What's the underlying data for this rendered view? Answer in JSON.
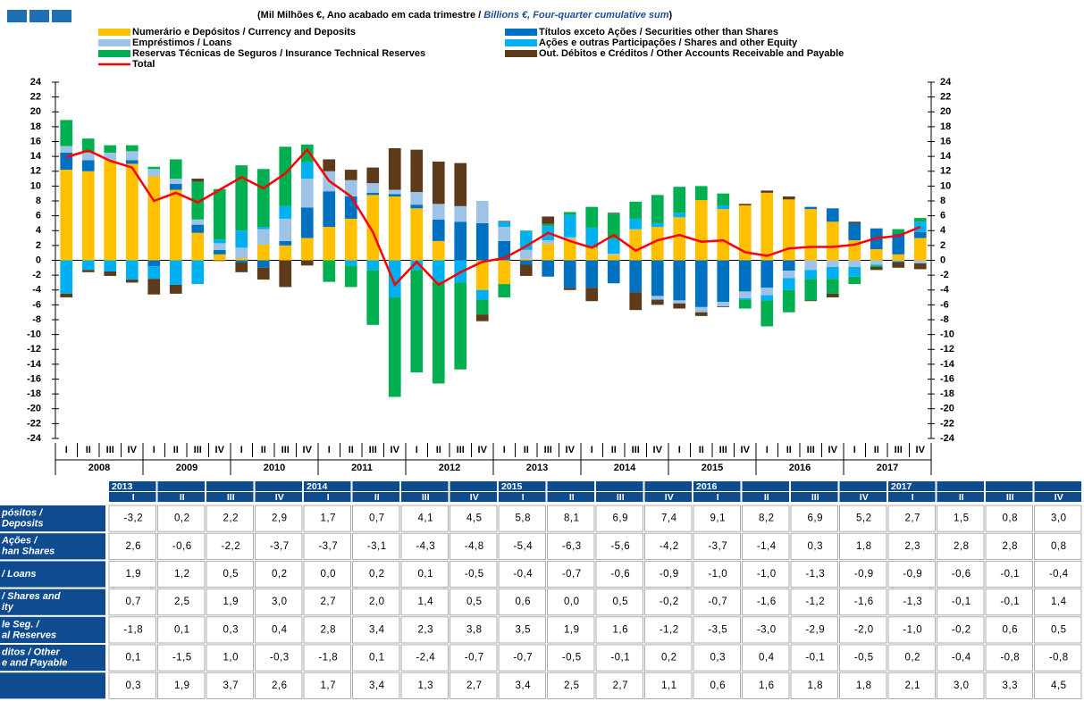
{
  "chart_data": {
    "type": "bar",
    "subtitle": "(Mil Milhões €, Ano acabado em cada trimestre / ",
    "subtitle_en": "Billions  €, Four-quarter cumulative sum",
    "subtitle_close": ")",
    "categories": [
      "I",
      "II",
      "III",
      "IV",
      "I",
      "II",
      "III",
      "IV",
      "I",
      "II",
      "III",
      "IV",
      "I",
      "II",
      "III",
      "IV",
      "I",
      "II",
      "III",
      "IV",
      "I",
      "II",
      "III",
      "IV",
      "I",
      "II",
      "III",
      "IV",
      "I",
      "II",
      "III",
      "IV",
      "I",
      "II",
      "III",
      "IV",
      "I",
      "II",
      "III",
      "IV"
    ],
    "years": [
      "2008",
      "2009",
      "2010",
      "2011",
      "2012",
      "2013",
      "2014",
      "2015",
      "2016",
      "2017"
    ],
    "ylim": [
      -24,
      24
    ],
    "yticks": [
      -24,
      -22,
      -20,
      -18,
      -16,
      -14,
      -12,
      -10,
      -8,
      -6,
      -4,
      -2,
      0,
      2,
      4,
      6,
      8,
      10,
      12,
      14,
      16,
      18,
      20,
      22,
      24
    ],
    "series": [
      {
        "name": "Numerário e Depósitos / Currency and Deposits",
        "color": "#FFC000",
        "values": [
          12.2,
          12,
          13.4,
          13,
          11.3,
          9.5,
          3.7,
          0.8,
          0.3,
          2.1,
          2.0,
          3.0,
          4.5,
          5.6,
          8.8,
          8.6,
          7.0,
          2.6,
          0,
          -4.0,
          -3.2,
          0.2,
          2.2,
          2.9,
          1.7,
          0.7,
          4.1,
          4.5,
          5.8,
          8.1,
          6.9,
          7.4,
          9.1,
          8.2,
          6.9,
          5.2,
          2.7,
          1.5,
          0.8,
          3.0
        ]
      },
      {
        "name": "Títulos exceto Ações / Securities other than Shares",
        "color": "#0070C0",
        "values": [
          2.3,
          1.5,
          0,
          0.5,
          -0.8,
          0.8,
          1.1,
          0.6,
          -0.3,
          -1.0,
          0.6,
          4.1,
          4.8,
          3.0,
          0.3,
          0.3,
          0.5,
          2.9,
          5.2,
          5.0,
          2.6,
          -0.6,
          -2.2,
          -3.7,
          -3.7,
          -3.1,
          -4.3,
          -4.8,
          -5.4,
          -6.3,
          -5.6,
          -4.2,
          -3.7,
          -1.4,
          0.3,
          1.8,
          2.3,
          2.8,
          2.8,
          0.8
        ]
      },
      {
        "name": "Empréstimos / Loans",
        "color": "#9DC3E6",
        "values": [
          0.9,
          1.0,
          1.1,
          1.2,
          1.0,
          0.7,
          0.7,
          0.9,
          1.4,
          2.1,
          3.0,
          3.9,
          2.7,
          2.2,
          1.3,
          0.6,
          1.7,
          2.1,
          2.1,
          3.0,
          1.9,
          1.2,
          0.5,
          0.2,
          0.0,
          0.2,
          0.1,
          -0.5,
          -0.4,
          -0.7,
          -0.6,
          -0.9,
          -1.0,
          -1.0,
          -1.3,
          -0.9,
          -0.9,
          -0.6,
          -0.1,
          -0.4
        ]
      },
      {
        "name": "Ações e outras Participações / Shares and other Equity",
        "color": "#00B0F0",
        "values": [
          -4.5,
          -1.3,
          -1.5,
          -2.6,
          -1.7,
          -3.3,
          -3.2,
          0.5,
          2.3,
          0.3,
          1.7,
          2.2,
          0,
          -0.7,
          -1.3,
          -5.0,
          -1.3,
          -2.9,
          -3.0,
          -1.3,
          0.7,
          2.5,
          1.9,
          3.0,
          2.7,
          2.0,
          1.4,
          0.5,
          0.6,
          0.0,
          0.5,
          -0.2,
          -0.7,
          -1.6,
          -1.2,
          -1.6,
          -1.3,
          -0.1,
          -0.1,
          1.4
        ]
      },
      {
        "name": "Reservas Técnicas de Seguros / Insurance Technical Reserves",
        "color": "#00B050",
        "values": [
          3.5,
          1.9,
          1.0,
          0.8,
          0.3,
          2.6,
          5.1,
          6.8,
          8.8,
          7.8,
          8.0,
          2.4,
          -2.9,
          -2.9,
          -7.4,
          -13.4,
          -13.8,
          -13.7,
          -11.7,
          -2.0,
          -1.8,
          0.1,
          0.3,
          0.4,
          2.8,
          3.4,
          2.3,
          3.8,
          3.5,
          1.9,
          1.6,
          -1.2,
          -3.5,
          -3.0,
          -2.9,
          -2.0,
          -1.0,
          -0.2,
          0.6,
          0.5
        ]
      },
      {
        "name": "Out. Débitos e Créditos / Other Accounts Receivable and Payable",
        "color": "#5C3A1A",
        "values": [
          -0.5,
          -0.3,
          -0.6,
          -0.4,
          -2.1,
          -1.2,
          0.4,
          -0.1,
          -1.3,
          -1.6,
          -3.6,
          -0.7,
          1.6,
          1.4,
          2.1,
          5.6,
          5.7,
          5.7,
          5.8,
          -0.9,
          0.1,
          -1.5,
          1.0,
          -0.3,
          -1.8,
          0.1,
          -2.4,
          -0.7,
          -0.7,
          -0.5,
          -0.1,
          0.2,
          0.3,
          0.4,
          -0.1,
          -0.5,
          0.2,
          -0.4,
          -0.8,
          -0.8
        ]
      },
      {
        "name": "Total",
        "color": "#FF0000",
        "type": "line",
        "values": [
          13.9,
          14.8,
          13.4,
          12.5,
          8.0,
          9.1,
          7.8,
          9.5,
          11.2,
          9.7,
          11.7,
          14.9,
          10.7,
          8.6,
          3.8,
          -3.3,
          -0.2,
          -3.3,
          -1.6,
          -0.2,
          0.3,
          1.9,
          3.7,
          2.6,
          1.7,
          3.4,
          1.3,
          2.7,
          3.4,
          2.5,
          2.7,
          1.1,
          0.6,
          1.6,
          1.8,
          1.8,
          2.1,
          3.0,
          3.3,
          4.5
        ]
      }
    ]
  },
  "table": {
    "years": [
      "2013",
      "2014",
      "2015",
      "2016",
      "2017"
    ],
    "quarters": [
      "I",
      "II",
      "III",
      "IV",
      "I",
      "II",
      "III",
      "IV",
      "I",
      "II",
      "III",
      "IV",
      "I",
      "II",
      "III",
      "IV",
      "I",
      "II",
      "III",
      "IV"
    ],
    "rows": [
      {
        "label": [
          "pósitos /",
          "Deposits"
        ],
        "cells": [
          "-3,2",
          "0,2",
          "2,2",
          "2,9",
          "1,7",
          "0,7",
          "4,1",
          "4,5",
          "5,8",
          "8,1",
          "6,9",
          "7,4",
          "9,1",
          "8,2",
          "6,9",
          "5,2",
          "2,7",
          "1,5",
          "0,8",
          "3,0"
        ]
      },
      {
        "label": [
          "Ações /",
          "han Shares"
        ],
        "cells": [
          "2,6",
          "-0,6",
          "-2,2",
          "-3,7",
          "-3,7",
          "-3,1",
          "-4,3",
          "-4,8",
          "-5,4",
          "-6,3",
          "-5,6",
          "-4,2",
          "-3,7",
          "-1,4",
          "0,3",
          "1,8",
          "2,3",
          "2,8",
          "2,8",
          "0,8"
        ]
      },
      {
        "label": [
          "/ Loans"
        ],
        "cells": [
          "1,9",
          "1,2",
          "0,5",
          "0,2",
          "0,0",
          "0,2",
          "0,1",
          "-0,5",
          "-0,4",
          "-0,7",
          "-0,6",
          "-0,9",
          "-1,0",
          "-1,0",
          "-1,3",
          "-0,9",
          "-0,9",
          "-0,6",
          "-0,1",
          "-0,4"
        ]
      },
      {
        "label": [
          "/ Shares and",
          "ity"
        ],
        "cells": [
          "0,7",
          "2,5",
          "1,9",
          "3,0",
          "2,7",
          "2,0",
          "1,4",
          "0,5",
          "0,6",
          "0,0",
          "0,5",
          "-0,2",
          "-0,7",
          "-1,6",
          "-1,2",
          "-1,6",
          "-1,3",
          "-0,1",
          "-0,1",
          "1,4"
        ]
      },
      {
        "label": [
          "le Seg. /",
          "al Reserves"
        ],
        "cells": [
          "-1,8",
          "0,1",
          "0,3",
          "0,4",
          "2,8",
          "3,4",
          "2,3",
          "3,8",
          "3,5",
          "1,9",
          "1,6",
          "-1,2",
          "-3,5",
          "-3,0",
          "-2,9",
          "-2,0",
          "-1,0",
          "-0,2",
          "0,6",
          "0,5"
        ]
      },
      {
        "label": [
          "ditos / Other",
          "e and Payable"
        ],
        "cells": [
          "0,1",
          "-1,5",
          "1,0",
          "-0,3",
          "-1,8",
          "0,1",
          "-2,4",
          "-0,7",
          "-0,7",
          "-0,5",
          "-0,1",
          "0,2",
          "0,3",
          "0,4",
          "-0,1",
          "-0,5",
          "0,2",
          "-0,4",
          "-0,8",
          "-0,8"
        ]
      },
      {
        "cells": [
          "0,3",
          "1,9",
          "3,7",
          "2,6",
          "1,7",
          "3,4",
          "1,3",
          "2,7",
          "3,4",
          "2,5",
          "2,7",
          "1,1",
          "0,6",
          "1,6",
          "1,8",
          "1,8",
          "2,1",
          "3,0",
          "3,3",
          "4,5"
        ]
      }
    ]
  }
}
